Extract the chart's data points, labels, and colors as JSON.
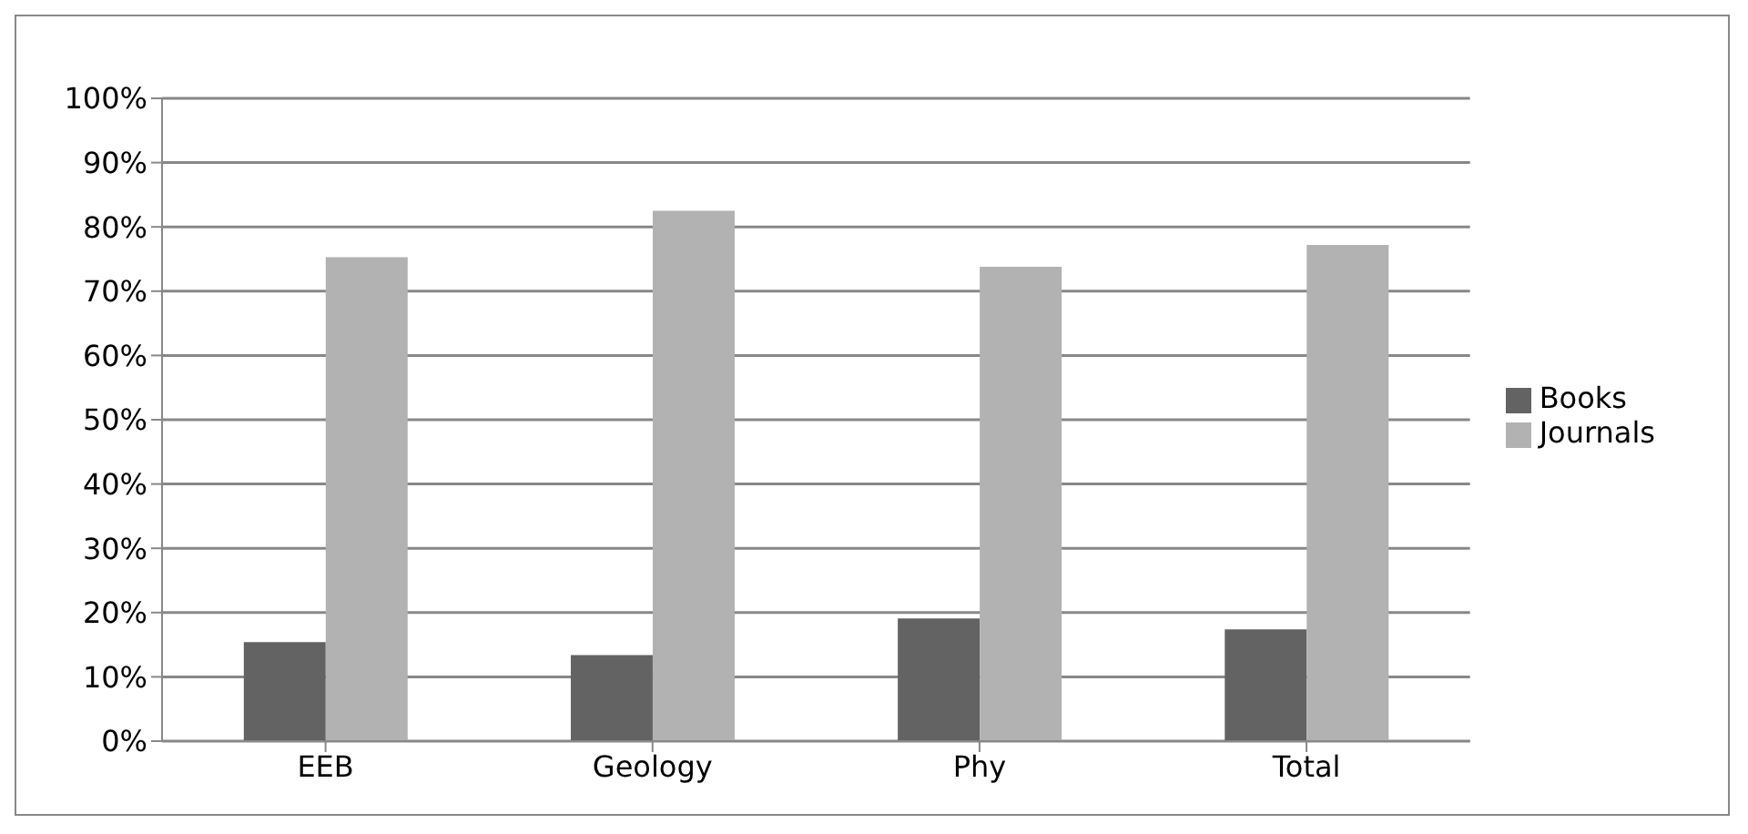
{
  "chart_data": {
    "type": "bar",
    "categories": [
      "EEB",
      "Geology",
      "Phy",
      "Total"
    ],
    "series": [
      {
        "name": "Books",
        "color": "#636363",
        "values": [
          15.4,
          13.4,
          19.1,
          17.4
        ]
      },
      {
        "name": "Journals",
        "color": "#b2b2b2",
        "values": [
          75.3,
          82.5,
          73.8,
          77.2
        ]
      }
    ],
    "ylim": [
      0,
      100
    ],
    "yticks": [
      {
        "value": 0,
        "label": "0%"
      },
      {
        "value": 10,
        "label": "10%"
      },
      {
        "value": 20,
        "label": "20%"
      },
      {
        "value": 30,
        "label": "30%"
      },
      {
        "value": 40,
        "label": "40%"
      },
      {
        "value": 50,
        "label": "50%"
      },
      {
        "value": 60,
        "label": "60%"
      },
      {
        "value": 70,
        "label": "70%"
      },
      {
        "value": 80,
        "label": "80%"
      },
      {
        "value": 90,
        "label": "90%"
      },
      {
        "value": 100,
        "label": "100%"
      }
    ],
    "grid": "y",
    "legend": "right"
  }
}
